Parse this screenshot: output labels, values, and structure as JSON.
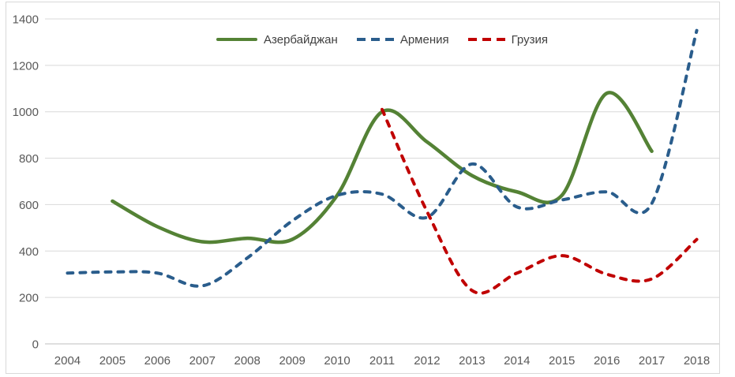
{
  "chart": {
    "background_color": "#ffffff",
    "frame_border_color": "#d9d9d9",
    "grid_color": "#d9d9d9",
    "zero_axis_color": "#bfbfbf",
    "tick_label_color": "#595959",
    "legend_label_color": "#404040"
  },
  "chart_data": {
    "type": "line",
    "title": "",
    "smooth": true,
    "grid": true,
    "legend_position": "top-center",
    "categories": [
      "2004",
      "2005",
      "2006",
      "2007",
      "2008",
      "2009",
      "2010",
      "2011",
      "2012",
      "2013",
      "2014",
      "2015",
      "2016",
      "2017",
      "2018"
    ],
    "ylim": [
      0,
      1400
    ],
    "yticks": [
      0,
      200,
      400,
      600,
      800,
      1000,
      1200,
      1400
    ],
    "series": [
      {
        "name": "Азербайджан",
        "color": "#548235",
        "line_style": "solid",
        "values": [
          null,
          615,
          505,
          440,
          455,
          450,
          640,
          1000,
          870,
          725,
          655,
          640,
          1080,
          830,
          null
        ]
      },
      {
        "name": "Армения",
        "color": "#2a5d8c",
        "line_style": "dashed",
        "values": [
          305,
          310,
          305,
          250,
          370,
          530,
          640,
          645,
          545,
          775,
          590,
          620,
          655,
          605,
          1350
        ]
      },
      {
        "name": "Грузия",
        "color": "#c00000",
        "line_style": "dashed",
        "values": [
          null,
          null,
          null,
          null,
          null,
          null,
          null,
          1010,
          570,
          230,
          305,
          380,
          300,
          280,
          450
        ]
      }
    ]
  }
}
